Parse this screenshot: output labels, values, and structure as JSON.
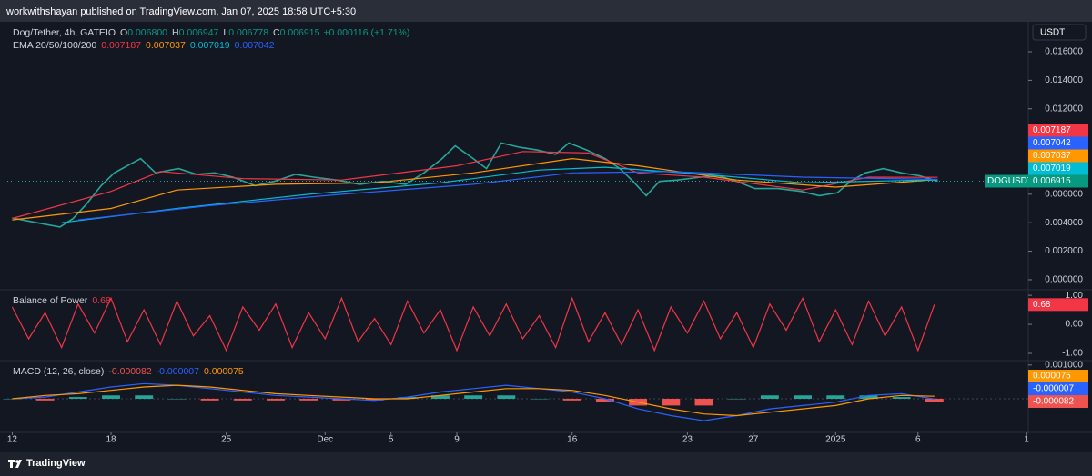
{
  "header": {
    "text": "workwithshayan published on TradingView.com, Jan 07, 2025 18:58 UTC+5:30"
  },
  "footer": {
    "brand": "TradingView"
  },
  "chart_data": [
    {
      "type": "line",
      "currency": "USDT",
      "legend": {
        "symbol": "Dog/Tether, 4h, GATEIO",
        "ohlc": [
          {
            "label": "O",
            "value": "0.006800"
          },
          {
            "label": "H",
            "value": "0.006947"
          },
          {
            "label": "L",
            "value": "0.006778"
          },
          {
            "label": "C",
            "value": "0.006915"
          }
        ],
        "change": "+0.000116 (+1.71%)",
        "ema_title": "EMA 20/50/100/200"
      },
      "ticker": "DOGUSDT",
      "xlim": [
        -0.3,
        61.7
      ],
      "ylim": [
        -0.00064,
        0.01785
      ],
      "grid": false,
      "yticks": [
        {
          "value": 0,
          "label": "0.000000"
        },
        {
          "value": 0.002,
          "label": "0.002000"
        },
        {
          "value": 0.004,
          "label": "0.004000"
        },
        {
          "value": 0.006,
          "label": "0.006000"
        },
        {
          "value": 0.012,
          "label": "0.012000"
        },
        {
          "value": 0.014,
          "label": "0.014000"
        },
        {
          "value": 0.016,
          "label": "0.016000"
        }
      ],
      "series": [
        {
          "color": "#26a69a",
          "x": [
            0,
            1.5,
            2.9,
            3.7,
            4.5,
            5.4,
            6.2,
            7.3,
            7.8,
            8.7,
            10.1,
            11.2,
            12.3,
            13.4,
            14.75,
            15.9,
            17.2,
            18.3,
            19.7,
            21.1,
            22.5,
            23.9,
            25.0,
            26.1,
            26.9,
            28.0,
            28.8,
            29.7,
            30.8,
            31.9,
            33.0,
            33.8,
            34.9,
            36.0,
            36.9,
            37.7,
            38.5,
            39.3,
            40.4,
            41.8,
            42.9,
            44.0,
            45.1,
            46.5,
            47.9,
            49.0,
            50.1,
            50.9,
            51.8,
            52.9,
            54.0,
            55.1,
            56.2
          ],
          "values": [
            0.00433,
            0.004,
            0.0037,
            0.0043,
            0.0053,
            0.0066,
            0.0075,
            0.0082,
            0.0085,
            0.0075,
            0.0078,
            0.0074,
            0.0075,
            0.0072,
            0.0066,
            0.0069,
            0.0074,
            0.0072,
            0.007,
            0.0067,
            0.0069,
            0.0067,
            0.0075,
            0.0085,
            0.0094,
            0.0085,
            0.0078,
            0.0096,
            0.0093,
            0.0091,
            0.0088,
            0.0096,
            0.0091,
            0.0085,
            0.0078,
            0.0069,
            0.0059,
            0.0069,
            0.007,
            0.0072,
            0.0073,
            0.0069,
            0.0064,
            0.0064,
            0.0062,
            0.0059,
            0.0061,
            0.0069,
            0.0075,
            0.0078,
            0.0075,
            0.0073,
            0.006915
          ]
        },
        {
          "color": "#f23645",
          "x": [
            0,
            6,
            9,
            14,
            20,
            27,
            31,
            35,
            38,
            42,
            48,
            52,
            56.2
          ],
          "values": [
            0.0043,
            0.0062,
            0.0076,
            0.0071,
            0.007,
            0.008,
            0.009,
            0.0089,
            0.0075,
            0.0072,
            0.0063,
            0.0072,
            0.007187
          ]
        },
        {
          "color": "#ff9800",
          "x": [
            0,
            6,
            10,
            16,
            22,
            28,
            34,
            38,
            44,
            50,
            56.2
          ],
          "values": [
            0.0042,
            0.005,
            0.0063,
            0.0067,
            0.0068,
            0.0075,
            0.0085,
            0.008,
            0.007,
            0.0065,
            0.007037
          ]
        },
        {
          "color": "#00bcd4",
          "x": [
            3,
            10,
            18,
            26,
            32,
            36,
            42,
            48,
            56.2
          ],
          "values": [
            0.004,
            0.005,
            0.006,
            0.0068,
            0.0077,
            0.0079,
            0.0074,
            0.0068,
            0.007019
          ]
        },
        {
          "color": "#2962ff",
          "x": [
            4,
            12,
            20,
            28,
            34,
            40,
            48,
            56.2
          ],
          "values": [
            0.0042,
            0.0052,
            0.006,
            0.0067,
            0.0075,
            0.0076,
            0.0072,
            0.007042
          ]
        }
      ]
    },
    {
      "type": "line",
      "title": "Balance of Power",
      "xlim": [
        -0.3,
        61.7
      ],
      "ylim": [
        -1.25,
        1.16
      ],
      "grid": false,
      "yticks": [
        {
          "value": 1,
          "label": "1.00"
        },
        {
          "value": 0,
          "label": "0.00"
        },
        {
          "value": -1,
          "label": "-1.00"
        }
      ],
      "x": [
        0,
        1,
        2,
        3,
        4,
        5,
        6,
        7,
        8,
        9,
        10,
        11,
        12,
        13,
        14,
        15,
        16,
        17,
        18,
        19,
        20,
        21,
        22,
        23,
        24,
        25,
        26,
        27,
        28,
        29,
        30,
        31,
        32,
        33,
        34,
        35,
        36,
        37,
        38,
        39,
        40,
        41,
        42,
        43,
        44,
        45,
        46,
        47,
        48,
        49,
        50,
        51,
        52,
        53,
        54,
        55,
        56
      ],
      "series": [
        {
          "color": "#f23645",
          "values": [
            0.6,
            -0.5,
            0.4,
            -0.8,
            0.7,
            -0.3,
            0.9,
            -0.6,
            0.5,
            -0.7,
            0.8,
            -0.4,
            0.3,
            -0.9,
            0.6,
            -0.2,
            0.7,
            -0.8,
            0.4,
            -0.5,
            0.9,
            -0.6,
            0.2,
            -0.7,
            0.8,
            -0.3,
            0.5,
            -0.9,
            0.6,
            -0.4,
            0.7,
            -0.5,
            0.3,
            -0.8,
            0.9,
            -0.6,
            0.4,
            -0.7,
            0.5,
            -0.9,
            0.6,
            -0.3,
            0.8,
            -0.5,
            0.4,
            -0.8,
            0.7,
            -0.2,
            0.9,
            -0.6,
            0.5,
            -0.7,
            0.8,
            -0.4,
            0.6,
            -0.9,
            0.68
          ]
        }
      ]
    },
    {
      "type": "line",
      "title": "MACD (12, 26, close)",
      "xlim": [
        -0.3,
        61.7
      ],
      "ylim": [
        -0.00097,
        0.00113
      ],
      "grid": false,
      "yticks": [
        {
          "value": 0.001,
          "label": "0.001000"
        }
      ],
      "xticks": [
        {
          "value": 0,
          "label": "12"
        },
        {
          "value": 6,
          "label": "18"
        },
        {
          "value": 13,
          "label": "25"
        },
        {
          "value": 19,
          "label": "Dec"
        },
        {
          "value": 23,
          "label": "5"
        },
        {
          "value": 27,
          "label": "9"
        },
        {
          "value": 34,
          "label": "16"
        },
        {
          "value": 41,
          "label": "23"
        },
        {
          "value": 45,
          "label": "27"
        },
        {
          "value": 50,
          "label": "2025"
        },
        {
          "value": 55,
          "label": "6"
        },
        {
          "value": 61.6,
          "label": "1"
        }
      ],
      "x": [
        0,
        2,
        4,
        6,
        8,
        10,
        12,
        14,
        16,
        18,
        20,
        22,
        24,
        26,
        28,
        30,
        32,
        34,
        36,
        38,
        40,
        42,
        44,
        46,
        48,
        50,
        52,
        54,
        56
      ],
      "series": [
        {
          "style": "columns",
          "color_up": "#26a69a",
          "color_down": "#ef5350",
          "values": [
            0,
            -5e-05,
            5e-05,
            0.0001,
            0.0001,
            0,
            -5e-05,
            -5e-05,
            -5e-05,
            -5e-05,
            -5e-05,
            -5e-05,
            5e-05,
            0.0001,
            0.0001,
            0.0001,
            0,
            -5e-05,
            -0.0001,
            -0.0002,
            -0.0002,
            -0.0002,
            0,
            0.0001,
            0.0001,
            0.0001,
            0.0001,
            5e-05,
            -8.2e-05
          ]
        },
        {
          "color": "#2962ff",
          "values": [
            0,
            5e-05,
            0.0002,
            0.00035,
            0.00045,
            0.0004,
            0.0003,
            0.0002,
            0.0001,
            5e-05,
            0,
            -5e-05,
            5e-05,
            0.0002,
            0.0003,
            0.0004,
            0.0003,
            0.0002,
            0,
            -0.0003,
            -0.0005,
            -0.00065,
            -0.0005,
            -0.0003,
            -0.0002,
            -0.0001,
            0.0001,
            0.00015,
            -7e-06
          ]
        },
        {
          "color": "#ff9800",
          "values": [
            0,
            0.0001,
            0.00015,
            0.00025,
            0.00035,
            0.0004,
            0.00035,
            0.00025,
            0.00015,
            0.0001,
            5e-05,
            0,
            0,
            0.0001,
            0.0002,
            0.0003,
            0.0003,
            0.00025,
            0.0001,
            -0.0001,
            -0.0003,
            -0.00045,
            -0.0005,
            -0.0004,
            -0.0003,
            -0.0002,
            0,
            0.0001,
            7.5e-05
          ]
        }
      ]
    }
  ]
}
